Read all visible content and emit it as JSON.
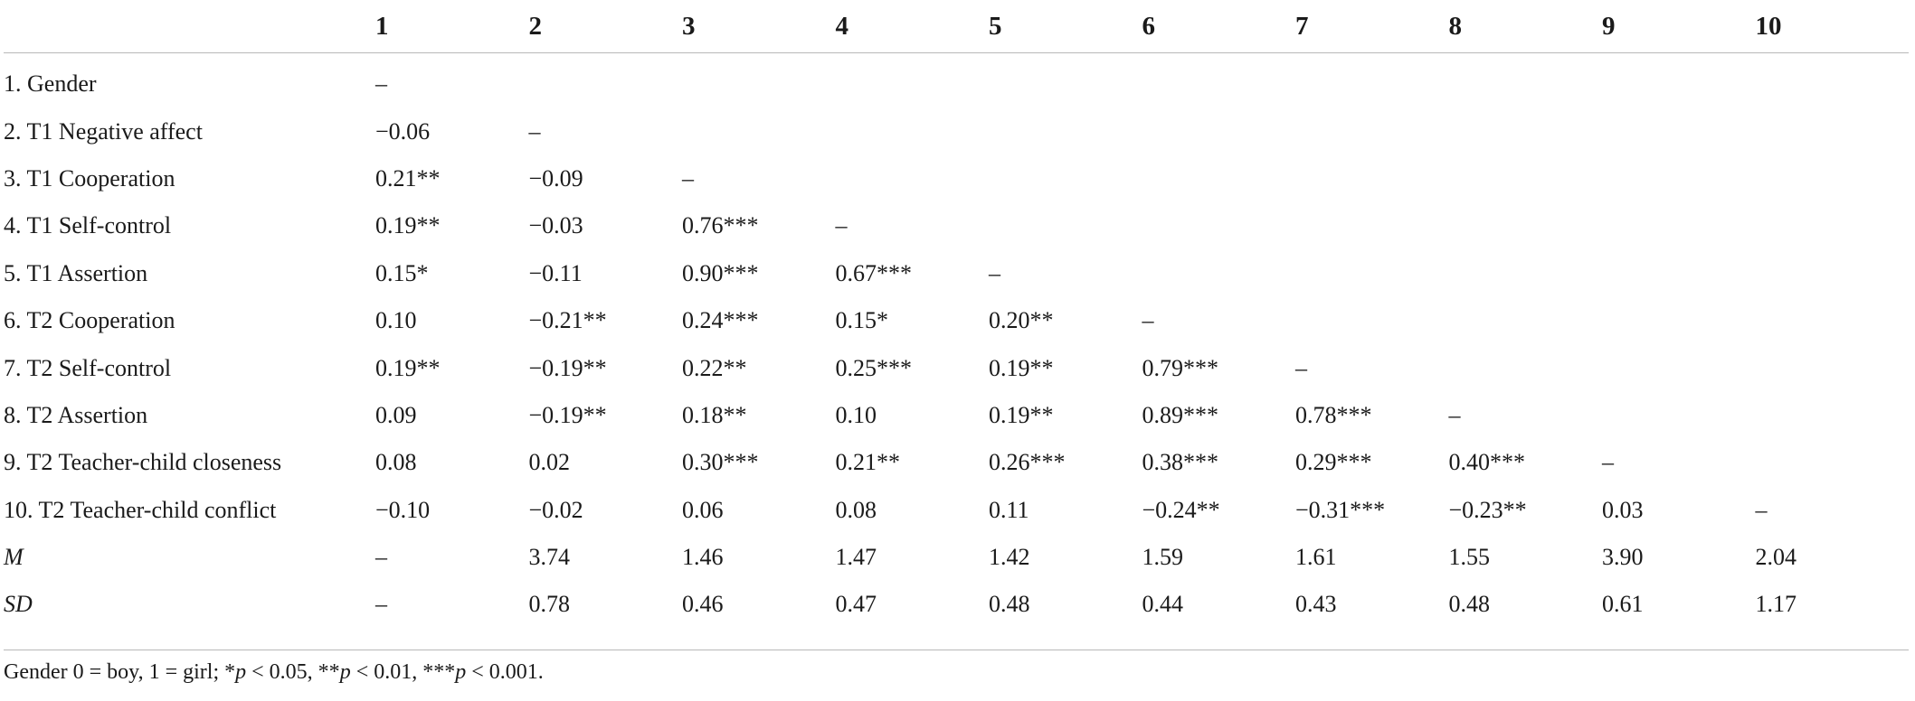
{
  "table": {
    "columns": [
      "",
      "1",
      "2",
      "3",
      "4",
      "5",
      "6",
      "7",
      "8",
      "9",
      "10"
    ],
    "rows": [
      {
        "label": "1. Gender",
        "italic": false,
        "cells": [
          "–",
          "",
          "",
          "",
          "",
          "",
          "",
          "",
          "",
          ""
        ]
      },
      {
        "label": "2. T1 Negative affect",
        "italic": false,
        "cells": [
          "−0.06",
          "–",
          "",
          "",
          "",
          "",
          "",
          "",
          "",
          ""
        ]
      },
      {
        "label": "3. T1 Cooperation",
        "italic": false,
        "cells": [
          "0.21**",
          "−0.09",
          "–",
          "",
          "",
          "",
          "",
          "",
          "",
          ""
        ]
      },
      {
        "label": "4. T1 Self-control",
        "italic": false,
        "cells": [
          "0.19**",
          "−0.03",
          "0.76***",
          "–",
          "",
          "",
          "",
          "",
          "",
          ""
        ]
      },
      {
        "label": "5. T1 Assertion",
        "italic": false,
        "cells": [
          "0.15*",
          "−0.11",
          "0.90***",
          "0.67***",
          "–",
          "",
          "",
          "",
          "",
          ""
        ]
      },
      {
        "label": "6. T2 Cooperation",
        "italic": false,
        "cells": [
          "0.10",
          "−0.21**",
          "0.24***",
          "0.15*",
          "0.20**",
          "–",
          "",
          "",
          "",
          ""
        ]
      },
      {
        "label": "7. T2 Self-control",
        "italic": false,
        "cells": [
          "0.19**",
          "−0.19**",
          "0.22**",
          "0.25***",
          "0.19**",
          "0.79***",
          "–",
          "",
          "",
          ""
        ]
      },
      {
        "label": "8. T2 Assertion",
        "italic": false,
        "cells": [
          "0.09",
          "−0.19**",
          "0.18**",
          "0.10",
          "0.19**",
          "0.89***",
          "0.78***",
          "–",
          "",
          ""
        ]
      },
      {
        "label": "9. T2 Teacher-child closeness",
        "italic": false,
        "cells": [
          "0.08",
          "0.02",
          "0.30***",
          "0.21**",
          "0.26***",
          "0.38***",
          "0.29***",
          "0.40***",
          "–",
          ""
        ]
      },
      {
        "label": "10. T2 Teacher-child conflict",
        "italic": false,
        "cells": [
          "−0.10",
          "−0.02",
          "0.06",
          "0.08",
          "0.11",
          "−0.24**",
          "−0.31***",
          "−0.23**",
          "0.03",
          "–"
        ]
      },
      {
        "label": "M",
        "italic": true,
        "cells": [
          "–",
          "3.74",
          "1.46",
          "1.47",
          "1.42",
          "1.59",
          "1.61",
          "1.55",
          "3.90",
          "2.04"
        ]
      },
      {
        "label": "SD",
        "italic": true,
        "cells": [
          "–",
          "0.78",
          "0.46",
          "0.47",
          "0.48",
          "0.44",
          "0.43",
          "0.48",
          "0.61",
          "1.17"
        ]
      }
    ]
  },
  "note": {
    "prefix": "Gender 0 = boy, 1 = girl; *",
    "p1": "p",
    "t1": " < 0.05, **",
    "p2": "p",
    "t2": " < 0.01, ***",
    "p3": "p",
    "t3": " < 0.001."
  }
}
